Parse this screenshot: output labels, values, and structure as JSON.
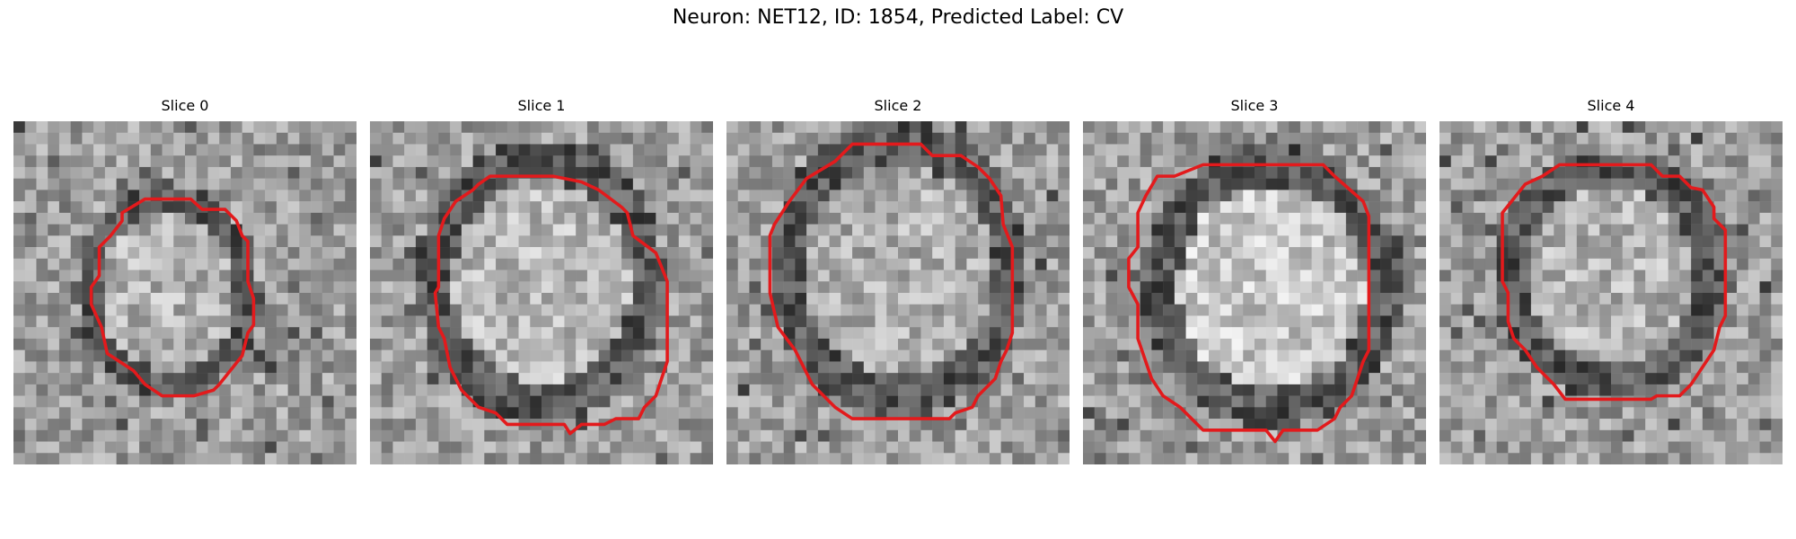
{
  "title": "Neuron: NET12, ID: 1854, Predicted Label: CV",
  "colors": {
    "contour": "#e31a1c",
    "background": "#ffffff"
  },
  "panels": [
    {
      "title": "Slice 0",
      "outline_description": "small octagonal red contour centered slightly left"
    },
    {
      "title": "Slice 1",
      "outline_description": "larger red contour filling most of panel"
    },
    {
      "title": "Slice 2",
      "outline_description": "large red contour near top"
    },
    {
      "title": "Slice 3",
      "outline_description": "large red contour lower center"
    },
    {
      "title": "Slice 4",
      "outline_description": "red contour centered"
    }
  ]
}
